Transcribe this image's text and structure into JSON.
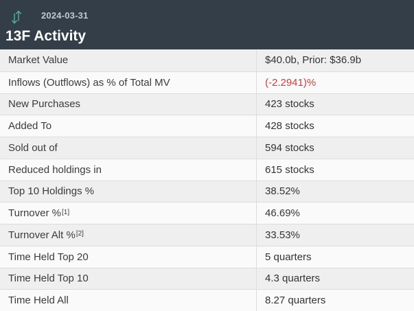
{
  "header": {
    "date": "2024-03-31",
    "title": "13F Activity",
    "icon": "up-down-arrows"
  },
  "colors": {
    "header_bg": "#333e48",
    "header_title": "#ffffff",
    "header_date": "#c2c9ce",
    "accent_teal": "#52ad9c",
    "row_odd_bg": "#efefef",
    "row_even_bg": "#fafafa",
    "border": "#dcdcdc",
    "label_text": "#3b3b3b",
    "value_text": "#333333",
    "negative_value": "#d43c3c"
  },
  "table": {
    "rows": [
      {
        "label": "Market Value",
        "sup": "",
        "value": "$40.0b, Prior: $36.9b",
        "negative": false
      },
      {
        "label": "Inflows (Outflows) as % of Total MV",
        "sup": "",
        "value": "(-2.2941)%",
        "negative": true
      },
      {
        "label": "New Purchases",
        "sup": "",
        "value": "423 stocks",
        "negative": false
      },
      {
        "label": "Added To",
        "sup": "",
        "value": "428 stocks",
        "negative": false
      },
      {
        "label": "Sold out of",
        "sup": "",
        "value": "594 stocks",
        "negative": false
      },
      {
        "label": "Reduced holdings in",
        "sup": "",
        "value": "615 stocks",
        "negative": false
      },
      {
        "label": "Top 10 Holdings %",
        "sup": "",
        "value": "38.52%",
        "negative": false
      },
      {
        "label": "Turnover %",
        "sup": "[1]",
        "value": "46.69%",
        "negative": false
      },
      {
        "label": "Turnover Alt %",
        "sup": "[2]",
        "value": "33.53%",
        "negative": false
      },
      {
        "label": "Time Held Top 20",
        "sup": "",
        "value": "5 quarters",
        "negative": false
      },
      {
        "label": "Time Held Top 10",
        "sup": "",
        "value": "4.3 quarters",
        "negative": false
      },
      {
        "label": "Time Held All",
        "sup": "",
        "value": "8.27 quarters",
        "negative": false
      }
    ]
  }
}
